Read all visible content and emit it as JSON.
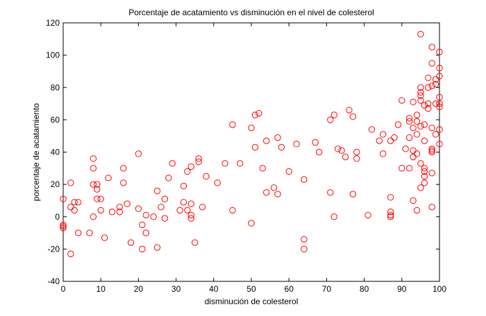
{
  "chart_data": {
    "type": "scatter",
    "title": "Porcentaje de acatamiento vs disminución en el nivel de colesterol",
    "xlabel": "disminución de colesterol",
    "ylabel": "porcentaje de acatamiento",
    "xlim": [
      0,
      100
    ],
    "ylim": [
      -40,
      120
    ],
    "xticks": [
      0,
      10,
      20,
      30,
      40,
      50,
      60,
      70,
      80,
      90,
      100
    ],
    "yticks": [
      -40,
      -20,
      0,
      20,
      40,
      60,
      80,
      100,
      120
    ],
    "grid": false,
    "legend": "none",
    "marker": "open-circle",
    "marker_color": "#ff0000",
    "series": [
      {
        "points": [
          [
            0,
            11
          ],
          [
            0,
            -5
          ],
          [
            0,
            -6
          ],
          [
            0,
            -7
          ],
          [
            2,
            21
          ],
          [
            2,
            6
          ],
          [
            2,
            -23
          ],
          [
            3,
            9
          ],
          [
            3,
            4
          ],
          [
            4,
            9
          ],
          [
            4,
            -10
          ],
          [
            7,
            -10
          ],
          [
            8,
            36
          ],
          [
            8,
            30
          ],
          [
            8,
            20
          ],
          [
            8,
            0
          ],
          [
            9,
            20
          ],
          [
            9,
            17
          ],
          [
            9,
            11
          ],
          [
            10,
            11
          ],
          [
            10,
            4
          ],
          [
            11,
            -13
          ],
          [
            12,
            24
          ],
          [
            13,
            3
          ],
          [
            15,
            6
          ],
          [
            15,
            3
          ],
          [
            16,
            30
          ],
          [
            16,
            21
          ],
          [
            17,
            8
          ],
          [
            18,
            -16
          ],
          [
            20,
            39
          ],
          [
            20,
            5
          ],
          [
            21,
            -5
          ],
          [
            21,
            -20
          ],
          [
            22,
            -10
          ],
          [
            22,
            1
          ],
          [
            24,
            0
          ],
          [
            25,
            16
          ],
          [
            25,
            -19
          ],
          [
            26,
            6
          ],
          [
            27,
            11
          ],
          [
            27,
            -1
          ],
          [
            28,
            24
          ],
          [
            29,
            33
          ],
          [
            31,
            4
          ],
          [
            32,
            19
          ],
          [
            32,
            9
          ],
          [
            33,
            28
          ],
          [
            33,
            4
          ],
          [
            34,
            31
          ],
          [
            34,
            8
          ],
          [
            34,
            1
          ],
          [
            34,
            -1
          ],
          [
            35,
            -16
          ],
          [
            36,
            36
          ],
          [
            36,
            34
          ],
          [
            37,
            6
          ],
          [
            38,
            25
          ],
          [
            41,
            21
          ],
          [
            43,
            33
          ],
          [
            45,
            57
          ],
          [
            45,
            4
          ],
          [
            47,
            33
          ],
          [
            50,
            55
          ],
          [
            50,
            -4
          ],
          [
            51,
            63
          ],
          [
            51,
            43
          ],
          [
            52,
            64
          ],
          [
            53,
            30
          ],
          [
            54,
            47
          ],
          [
            54,
            15
          ],
          [
            56,
            18
          ],
          [
            57,
            49
          ],
          [
            57,
            14
          ],
          [
            58,
            43
          ],
          [
            60,
            28
          ],
          [
            62,
            45
          ],
          [
            64,
            23
          ],
          [
            64,
            -14
          ],
          [
            64,
            -20
          ],
          [
            67,
            46
          ],
          [
            68,
            40
          ],
          [
            71,
            60
          ],
          [
            71,
            15
          ],
          [
            72,
            63
          ],
          [
            72,
            0
          ],
          [
            73,
            42
          ],
          [
            74,
            41
          ],
          [
            75,
            37
          ],
          [
            76,
            66
          ],
          [
            77,
            62
          ],
          [
            77,
            14
          ],
          [
            78,
            40
          ],
          [
            78,
            36
          ],
          [
            81,
            1
          ],
          [
            82,
            54
          ],
          [
            84,
            47
          ],
          [
            85,
            51
          ],
          [
            85,
            39
          ],
          [
            87,
            47
          ],
          [
            87,
            12
          ],
          [
            87,
            3
          ],
          [
            87,
            1
          ],
          [
            87,
            0
          ],
          [
            88,
            49
          ],
          [
            89,
            57
          ],
          [
            90,
            72
          ],
          [
            90,
            30
          ],
          [
            91,
            42
          ],
          [
            92,
            61
          ],
          [
            92,
            59
          ],
          [
            92,
            49
          ],
          [
            92,
            30
          ],
          [
            93,
            71
          ],
          [
            93,
            55
          ],
          [
            93,
            41
          ],
          [
            93,
            37
          ],
          [
            93,
            10
          ],
          [
            94,
            63
          ],
          [
            94,
            59
          ],
          [
            94,
            51
          ],
          [
            94,
            39
          ],
          [
            94,
            4
          ],
          [
            95,
            113
          ],
          [
            95,
            80
          ],
          [
            95,
            77
          ],
          [
            95,
            75
          ],
          [
            95,
            72
          ],
          [
            95,
            56
          ],
          [
            95,
            33
          ],
          [
            95,
            18
          ],
          [
            96,
            69
          ],
          [
            96,
            57
          ],
          [
            96,
            47
          ],
          [
            96,
            30
          ],
          [
            96,
            28
          ],
          [
            96,
            21
          ],
          [
            96,
            25
          ],
          [
            97,
            86
          ],
          [
            97,
            80
          ],
          [
            97,
            70
          ],
          [
            97,
            67
          ],
          [
            98,
            105
          ],
          [
            98,
            95
          ],
          [
            98,
            81
          ],
          [
            98,
            55
          ],
          [
            98,
            42
          ],
          [
            98,
            41
          ],
          [
            98,
            40
          ],
          [
            98,
            27
          ],
          [
            98,
            6
          ],
          [
            99,
            85
          ],
          [
            99,
            82
          ],
          [
            99,
            70
          ],
          [
            99,
            51
          ],
          [
            100,
            102
          ],
          [
            100,
            92
          ],
          [
            100,
            87
          ],
          [
            100,
            74
          ],
          [
            100,
            70
          ],
          [
            100,
            68
          ],
          [
            100,
            54
          ],
          [
            100,
            45
          ]
        ]
      }
    ]
  }
}
